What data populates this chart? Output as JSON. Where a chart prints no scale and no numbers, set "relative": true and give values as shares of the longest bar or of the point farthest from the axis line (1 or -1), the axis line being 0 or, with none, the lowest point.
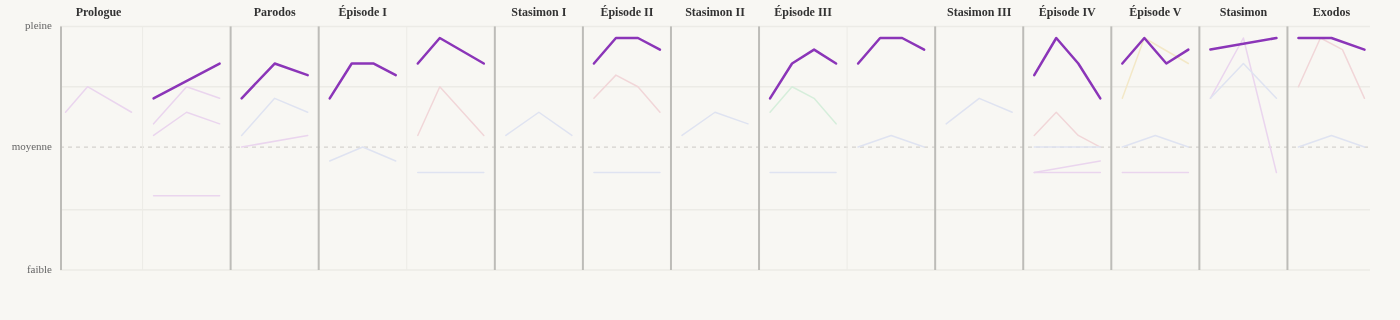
{
  "chart_data": {
    "type": "line",
    "relative": true,
    "tick_labels": "x",
    "legend": false,
    "marker": "none",
    "line_style": "solid",
    "categories": [
      null,
      null,
      null,
      "Prologue",
      null,
      null,
      null,
      null,
      null,
      null,
      null,
      null,
      null,
      null,
      null,
      null,
      null,
      null,
      null,
      "Parodos",
      null,
      null,
      null,
      null,
      null,
      null,
      null,
      "Épisode I",
      null,
      null,
      null,
      null,
      null,
      null,
      null,
      null,
      null,
      null,
      null,
      null,
      null,
      null,
      null,
      "Stasimon I",
      null,
      null,
      null,
      null,
      null,
      null,
      null,
      "Épisode II",
      null,
      null,
      null,
      null,
      null,
      null,
      null,
      "Stasimon II",
      null,
      null,
      null,
      null,
      null,
      null,
      null,
      "Épisode III",
      null,
      null,
      null,
      null,
      null,
      null,
      null,
      null,
      null,
      null,
      null,
      null,
      null,
      null,
      null,
      "Stasimon III",
      null,
      null,
      null,
      null,
      null,
      null,
      null,
      "Épisode IV",
      null,
      null,
      null,
      null,
      null,
      null,
      null,
      "Épisode V",
      null,
      null,
      null,
      null,
      null,
      null,
      null,
      "Stasimon",
      null,
      null,
      null,
      null,
      null,
      null,
      null,
      "Exodos",
      null,
      null,
      null
    ],
    "ref_lines": [
      {
        "axis": "y",
        "value": 0,
        "label": "faible",
        "color": "#ecebe6"
      },
      {
        "axis": "y",
        "value": 0.26,
        "color": "#ecebe6"
      },
      {
        "axis": "y",
        "value": 0.53,
        "label": "moyenne",
        "color": "#d3d2ce",
        "line_style": "dashed"
      },
      {
        "axis": "y",
        "value": 0.79,
        "color": "#ecebe6"
      },
      {
        "axis": "y",
        "value": 1.05,
        "label": "pleine",
        "color": "#ecebe6"
      }
    ],
    "series": [
      {
        "color": "#8b35b8",
        "values": [
          null,
          null,
          null,
          null,
          null,
          null,
          null,
          null,
          0.74,
          null,
          null,
          null,
          null,
          null,
          0.89,
          null,
          0.74,
          null,
          null,
          0.89,
          null,
          null,
          0.84,
          null,
          0.74,
          null,
          0.89,
          null,
          0.89,
          null,
          0.84,
          null,
          0.89,
          null,
          1,
          null,
          null,
          null,
          0.89,
          null,
          null,
          null,
          null,
          null,
          null,
          null,
          null,
          null,
          0.89,
          null,
          1,
          null,
          1,
          null,
          0.95,
          null,
          null,
          null,
          null,
          null,
          null,
          null,
          null,
          null,
          0.74,
          null,
          0.89,
          null,
          0.95,
          null,
          0.89,
          null,
          0.89,
          null,
          1,
          null,
          1,
          null,
          0.95,
          null,
          null,
          null,
          null,
          null,
          null,
          null,
          null,
          null,
          0.84,
          null,
          1,
          null,
          0.89,
          null,
          0.74,
          null,
          0.89,
          null,
          1,
          null,
          0.89,
          null,
          0.95,
          null,
          0.95,
          null,
          null,
          null,
          null,
          null,
          1,
          null,
          1,
          null,
          null,
          1,
          null,
          null,
          0.95
        ]
      },
      {
        "color": "#dfe3f1",
        "values": [
          null,
          null,
          null,
          null,
          null,
          null,
          null,
          null,
          null,
          null,
          null,
          null,
          null,
          null,
          null,
          null,
          0.58,
          null,
          null,
          0.74,
          null,
          null,
          0.68,
          null,
          0.47,
          null,
          null,
          0.53,
          null,
          null,
          0.47,
          null,
          0.42,
          null,
          null,
          null,
          null,
          null,
          0.42,
          null,
          0.58,
          null,
          null,
          0.68,
          null,
          null,
          0.58,
          null,
          0.42,
          null,
          null,
          null,
          null,
          null,
          0.42,
          null,
          0.58,
          null,
          null,
          0.68,
          null,
          null,
          0.63,
          null,
          0.42,
          null,
          null,
          null,
          null,
          null,
          0.42,
          null,
          0.53,
          null,
          null,
          0.58,
          null,
          null,
          0.53,
          null,
          0.63,
          null,
          null,
          0.74,
          null,
          null,
          0.68,
          null,
          0.53,
          null,
          null,
          null,
          null,
          null,
          0.53,
          null,
          0.53,
          null,
          null,
          0.58,
          null,
          null,
          0.53,
          null,
          0.74,
          null,
          null,
          0.89,
          null,
          null,
          0.74,
          null,
          0.53,
          null,
          null,
          0.58,
          null,
          null,
          0.53
        ]
      },
      {
        "color": "#f1d6d8",
        "values": [
          null,
          null,
          null,
          null,
          null,
          null,
          null,
          null,
          null,
          null,
          null,
          null,
          null,
          null,
          null,
          null,
          null,
          null,
          null,
          null,
          null,
          null,
          null,
          null,
          null,
          null,
          null,
          null,
          null,
          null,
          null,
          null,
          0.58,
          null,
          0.79,
          null,
          null,
          null,
          0.58,
          null,
          null,
          null,
          null,
          null,
          null,
          null,
          null,
          null,
          0.74,
          null,
          0.84,
          null,
          0.79,
          null,
          0.68,
          null,
          null,
          null,
          null,
          null,
          null,
          null,
          null,
          null,
          null,
          null,
          null,
          null,
          null,
          null,
          null,
          null,
          null,
          null,
          null,
          null,
          null,
          null,
          null,
          null,
          null,
          null,
          null,
          null,
          null,
          null,
          null,
          null,
          0.58,
          null,
          0.68,
          null,
          0.58,
          null,
          0.53,
          null,
          null,
          null,
          null,
          null,
          null,
          null,
          null,
          null,
          null,
          null,
          null,
          null,
          null,
          null,
          null,
          null,
          0.79,
          null,
          1,
          null,
          0.95,
          null,
          0.74
        ]
      },
      {
        "color": "#ead5ee",
        "values": [
          0.68,
          null,
          0.79,
          null,
          null,
          null,
          0.68,
          null,
          0.63,
          null,
          null,
          0.79,
          null,
          null,
          0.74,
          null,
          0.53,
          null,
          null,
          null,
          null,
          null,
          0.58,
          null,
          null,
          null,
          null,
          null,
          null,
          null,
          null,
          null,
          null,
          null,
          null,
          null,
          null,
          null,
          null,
          null,
          null,
          null,
          null,
          null,
          null,
          null,
          null,
          null,
          null,
          null,
          null,
          null,
          null,
          null,
          null,
          null,
          null,
          null,
          null,
          null,
          null,
          null,
          null,
          null,
          null,
          null,
          null,
          null,
          null,
          null,
          null,
          null,
          null,
          null,
          null,
          null,
          null,
          null,
          null,
          null,
          null,
          null,
          null,
          null,
          null,
          null,
          null,
          null,
          0.42,
          null,
          null,
          null,
          null,
          null,
          0.42,
          null,
          0.42,
          null,
          null,
          null,
          null,
          null,
          0.42,
          null,
          0.74,
          null,
          null,
          1,
          null,
          null,
          0.42,
          null,
          null,
          null,
          null,
          null,
          null,
          null,
          null
        ]
      },
      {
        "color": "#ead5ee",
        "values": [
          null,
          null,
          null,
          null,
          null,
          null,
          null,
          null,
          0.58,
          null,
          null,
          0.68,
          null,
          null,
          0.63,
          null,
          null,
          null,
          null,
          null,
          null,
          null,
          null,
          null,
          null,
          null,
          null,
          null,
          null,
          null,
          null,
          null,
          null,
          null,
          null,
          null,
          null,
          null,
          null,
          null,
          null,
          null,
          null,
          null,
          null,
          null,
          null,
          null,
          null,
          null,
          null,
          null,
          null,
          null,
          null,
          null,
          null,
          null,
          null,
          null,
          null,
          null,
          null,
          null,
          null,
          null,
          null,
          null,
          null,
          null,
          null,
          null,
          null,
          null,
          null,
          null,
          null,
          null,
          null,
          null,
          null,
          null,
          null,
          null,
          null,
          null,
          null,
          null,
          0.42,
          null,
          null,
          null,
          null,
          null,
          0.47,
          null,
          null,
          null,
          null,
          null,
          null,
          null,
          null,
          null,
          null,
          null,
          null,
          null,
          null,
          null,
          null,
          null,
          null,
          null,
          null,
          null,
          null,
          null,
          null
        ]
      },
      {
        "color": "#ead5ee",
        "values": [
          null,
          null,
          null,
          null,
          null,
          null,
          null,
          null,
          0.32,
          null,
          null,
          null,
          null,
          null,
          0.32,
          null,
          null,
          null,
          null,
          null,
          null,
          null,
          null,
          null,
          null,
          null,
          null,
          null,
          null,
          null,
          null,
          null,
          null,
          null,
          null,
          null,
          null,
          null,
          null,
          null,
          null,
          null,
          null,
          null,
          null,
          null,
          null,
          null,
          null,
          null,
          null,
          null,
          null,
          null,
          null,
          null,
          null,
          null,
          null,
          null,
          null,
          null,
          null,
          null,
          null,
          null,
          null,
          null,
          null,
          null,
          null,
          null,
          null,
          null,
          null,
          null,
          null,
          null,
          null,
          null,
          null,
          null,
          null,
          null,
          null,
          null,
          null,
          null,
          null,
          null,
          null,
          null,
          null,
          null,
          null,
          null,
          null,
          null,
          null,
          null,
          null,
          null,
          null,
          null,
          null,
          null,
          null,
          null,
          null,
          null,
          null,
          null,
          null,
          null,
          null,
          null,
          null,
          null,
          null
        ]
      },
      {
        "color": "#f3e8c7",
        "values": [
          null,
          null,
          null,
          null,
          null,
          null,
          null,
          null,
          null,
          null,
          null,
          null,
          null,
          null,
          null,
          null,
          null,
          null,
          null,
          null,
          null,
          null,
          null,
          null,
          null,
          null,
          null,
          null,
          null,
          null,
          null,
          null,
          null,
          null,
          null,
          null,
          null,
          null,
          null,
          null,
          null,
          null,
          null,
          null,
          null,
          null,
          null,
          null,
          null,
          null,
          null,
          null,
          null,
          null,
          null,
          null,
          null,
          null,
          null,
          null,
          null,
          null,
          null,
          null,
          null,
          null,
          null,
          null,
          null,
          null,
          null,
          null,
          null,
          null,
          null,
          null,
          null,
          null,
          null,
          null,
          null,
          null,
          null,
          null,
          null,
          null,
          null,
          null,
          null,
          null,
          null,
          null,
          null,
          null,
          null,
          null,
          0.74,
          null,
          1,
          null,
          null,
          null,
          0.89,
          null,
          null,
          null,
          null,
          null,
          null,
          null,
          null,
          null,
          null,
          null,
          null,
          null,
          null,
          null,
          null
        ]
      },
      {
        "color": "#d6eedb",
        "values": [
          null,
          null,
          null,
          null,
          null,
          null,
          null,
          null,
          null,
          null,
          null,
          null,
          null,
          null,
          null,
          null,
          null,
          null,
          null,
          null,
          null,
          null,
          null,
          null,
          null,
          null,
          null,
          null,
          null,
          null,
          null,
          null,
          null,
          null,
          null,
          null,
          null,
          null,
          null,
          null,
          null,
          null,
          null,
          null,
          null,
          null,
          null,
          null,
          null,
          null,
          null,
          null,
          null,
          null,
          null,
          null,
          null,
          null,
          null,
          null,
          null,
          null,
          null,
          null,
          0.68,
          null,
          0.79,
          null,
          0.74,
          null,
          0.63,
          null,
          null,
          null,
          null,
          null,
          null,
          null,
          null,
          null,
          null,
          null,
          null,
          null,
          null,
          null,
          null,
          null,
          null,
          null,
          null,
          null,
          null,
          null,
          null,
          null,
          null,
          null,
          null,
          null,
          null,
          null,
          null,
          null,
          null,
          null,
          null,
          null,
          null,
          null,
          null,
          null,
          null,
          null,
          null,
          null,
          null,
          null,
          null
        ]
      }
    ]
  }
}
